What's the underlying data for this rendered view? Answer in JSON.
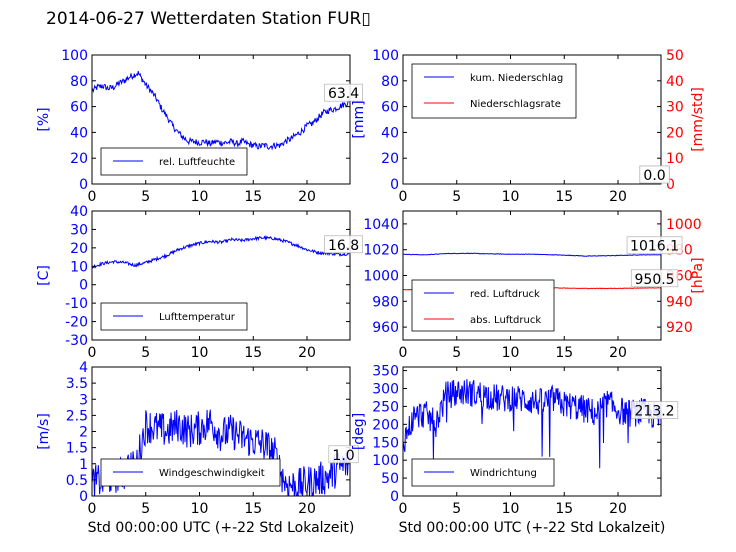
{
  "figure": {
    "title": "2014-06-27 Wetterdaten Station FUR▯",
    "colors": {
      "left_axis": "#0000ff",
      "right_axis": "#ff0000",
      "series_blue": "#0000ff",
      "series_red": "#ff0000"
    }
  },
  "chart_data": [
    {
      "type": "line",
      "xlim": [
        0,
        24
      ],
      "xticks": [
        0,
        5,
        10,
        15,
        20
      ],
      "ylim": [
        0,
        100
      ],
      "yticks": [
        0,
        20,
        40,
        60,
        80,
        100
      ],
      "ylabel": "[%]",
      "series": [
        {
          "name": "rel. Luftfeuchte",
          "color": "#0000ff",
          "x": [
            0,
            0.5,
            1,
            1.5,
            2,
            2.5,
            3,
            3.5,
            4,
            4.3,
            4.6,
            5,
            5.5,
            6,
            6.5,
            7,
            7.5,
            8,
            8.5,
            9,
            9.5,
            10,
            10.5,
            11,
            11.5,
            12,
            12.5,
            13,
            13.5,
            14,
            14.5,
            15,
            15.5,
            16,
            16.5,
            17,
            17.5,
            18,
            18.5,
            19,
            19.5,
            20,
            20.5,
            21,
            21.5,
            22,
            22.5,
            23,
            23.5,
            24
          ],
          "y": [
            72,
            75,
            76,
            74,
            75,
            78,
            80,
            83,
            85,
            86,
            82,
            77,
            72,
            66,
            58,
            52,
            45,
            40,
            36,
            33,
            33,
            32,
            33,
            31,
            33,
            32,
            32,
            33,
            31,
            33,
            31,
            30,
            29,
            30,
            29,
            30,
            30,
            33,
            35,
            38,
            41,
            45,
            47,
            51,
            55,
            57,
            58,
            60,
            62,
            63.4
          ],
          "noise": 2.5
        }
      ],
      "annotations": [
        {
          "text": "63.4",
          "x": 23.4,
          "y": 63.4
        }
      ],
      "legend": {
        "position": "lower-left"
      }
    },
    {
      "type": "line",
      "xlim": [
        0,
        24
      ],
      "xticks": [
        0,
        5,
        10,
        15,
        20
      ],
      "ylim": [
        0,
        100
      ],
      "yticks": [
        0,
        20,
        40,
        60,
        80,
        100
      ],
      "ylabel": "[mm]",
      "ylim_right": [
        0,
        50
      ],
      "yticks_right": [
        0,
        10,
        20,
        30,
        40,
        50
      ],
      "ylabel_right": "[mm/std]",
      "series": [
        {
          "name": "kum. Niederschlag",
          "color": "#0000ff",
          "axis": "left",
          "x": [
            0,
            24
          ],
          "y": [
            0,
            0
          ],
          "noise": 0
        },
        {
          "name": "Niederschlagsrate",
          "color": "#ff0000",
          "axis": "right",
          "x": [
            0,
            24
          ],
          "y": [
            0,
            0
          ],
          "noise": 0
        }
      ],
      "annotations": [
        {
          "text": "0.0",
          "x": 23.4,
          "y": 0,
          "axis": "left"
        },
        {
          "text": "0.0",
          "x": 23.4,
          "y": 0,
          "axis": "right"
        }
      ],
      "legend": {
        "position": "upper-left"
      }
    },
    {
      "type": "line",
      "xlim": [
        0,
        24
      ],
      "xticks": [
        0,
        5,
        10,
        15,
        20
      ],
      "ylim": [
        -30,
        40
      ],
      "yticks": [
        -30,
        -20,
        -10,
        0,
        10,
        20,
        30,
        40
      ],
      "ylabel": "[C]",
      "series": [
        {
          "name": "Lufttemperatur",
          "color": "#0000ff",
          "x": [
            0,
            1,
            2,
            3,
            4,
            5,
            6,
            7,
            8,
            9,
            10,
            11,
            12,
            13,
            14,
            15,
            16,
            17,
            18,
            19,
            20,
            21,
            22,
            23,
            24
          ],
          "y": [
            9.5,
            11.5,
            12.5,
            12,
            10.5,
            12,
            14,
            16,
            19,
            21,
            22.5,
            23.5,
            23,
            24.5,
            24,
            25,
            25.5,
            25,
            23.5,
            21.5,
            19,
            17.5,
            17,
            16.5,
            16.8
          ],
          "noise": 0.8
        }
      ],
      "annotations": [
        {
          "text": "16.8",
          "x": 23.4,
          "y": 16.8
        }
      ],
      "legend": {
        "position": "lower-left"
      }
    },
    {
      "type": "line",
      "xlim": [
        0,
        24
      ],
      "xticks": [
        0,
        5,
        10,
        15,
        20
      ],
      "ylim": [
        950,
        1050
      ],
      "yticks": [
        960,
        980,
        1000,
        1020,
        1040
      ],
      "ylim_right": [
        910,
        1010
      ],
      "yticks_right": [
        920,
        940,
        960,
        980,
        1000
      ],
      "ylabel_right": "[hPa]",
      "series": [
        {
          "name": "red. Luftdruck",
          "color": "#0000ff",
          "axis": "left",
          "x": [
            0,
            2,
            4,
            6,
            8,
            10,
            12,
            14,
            16,
            17,
            18,
            20,
            22,
            24
          ],
          "y": [
            1016.5,
            1016,
            1017,
            1017.2,
            1016.8,
            1016.5,
            1016.5,
            1016,
            1015.5,
            1015,
            1015.2,
            1015.5,
            1016,
            1016.1
          ],
          "noise": 0.2
        },
        {
          "name": "abs. Luftdruck",
          "color": "#ff0000",
          "axis": "right",
          "x": [
            0,
            2,
            4,
            6,
            8,
            10,
            12,
            14,
            16,
            18,
            20,
            22,
            24
          ],
          "y": [
            949,
            949,
            950,
            951,
            951.5,
            951,
            951,
            950.5,
            950,
            950,
            950,
            950.3,
            950.5
          ],
          "noise": 0.2
        }
      ],
      "annotations": [
        {
          "text": "1016.1",
          "x": 23.4,
          "y": 1016.1,
          "axis": "left"
        },
        {
          "text": "950.5",
          "x": 23.4,
          "y": 950.5,
          "axis": "right"
        }
      ],
      "legend": {
        "position": "lower-left"
      }
    },
    {
      "type": "line",
      "xlim": [
        0,
        24
      ],
      "xticks": [
        0,
        5,
        10,
        15,
        20
      ],
      "ylim": [
        0,
        4
      ],
      "yticks": [
        0,
        0.5,
        1,
        1.5,
        2,
        2.5,
        3,
        3.5,
        4
      ],
      "ylabel": "[m/s]",
      "xlabel": "Std 00:00:00 UTC (+-22 Std Lokalzeit)",
      "series": [
        {
          "name": "Windgeschwindigkeit",
          "color": "#0000ff",
          "x": [
            0,
            1,
            2,
            3,
            3.5,
            4,
            4.5,
            5,
            6,
            7,
            8,
            9,
            10,
            11,
            12,
            13,
            14,
            15,
            16,
            17,
            17.5,
            18,
            19,
            20,
            21,
            22,
            23,
            24
          ],
          "y": [
            0.4,
            0.5,
            0.6,
            0.7,
            1,
            0.8,
            1.5,
            2.2,
            2.1,
            2,
            2.2,
            2,
            2.1,
            2.3,
            1.9,
            2,
            1.8,
            1.7,
            1.6,
            1.3,
            0.8,
            0.4,
            0.3,
            0.4,
            0.5,
            0.6,
            0.9,
            1.0
          ],
          "noise": 0.55
        }
      ],
      "annotations": [
        {
          "text": "1.0",
          "x": 23.4,
          "y": 1.0
        }
      ],
      "legend": {
        "position": "lower-left"
      }
    },
    {
      "type": "line",
      "xlim": [
        0,
        24
      ],
      "xticks": [
        0,
        5,
        10,
        15,
        20
      ],
      "ylim": [
        0,
        360
      ],
      "yticks": [
        0,
        50,
        100,
        150,
        200,
        250,
        300,
        350
      ],
      "ylabel": "[deg]",
      "xlabel": "Std 00:00:00 UTC (+-22 Std Lokalzeit)",
      "series": [
        {
          "name": "Windrichtung",
          "color": "#0000ff",
          "x": [
            0,
            1,
            2,
            3,
            4,
            5,
            6,
            7,
            8,
            9,
            10,
            11,
            12,
            13,
            14,
            15,
            16,
            17,
            18,
            19,
            20,
            21,
            22,
            23,
            24
          ],
          "y": [
            150,
            220,
            230,
            200,
            280,
            290,
            290,
            285,
            280,
            270,
            275,
            270,
            265,
            260,
            270,
            255,
            250,
            240,
            230,
            260,
            240,
            230,
            235,
            230,
            213.2
          ],
          "noise": 40
        }
      ],
      "annotations": [
        {
          "text": "213.2",
          "x": 23.4,
          "y": 213.2
        }
      ],
      "legend": {
        "position": "lower-left"
      }
    }
  ]
}
